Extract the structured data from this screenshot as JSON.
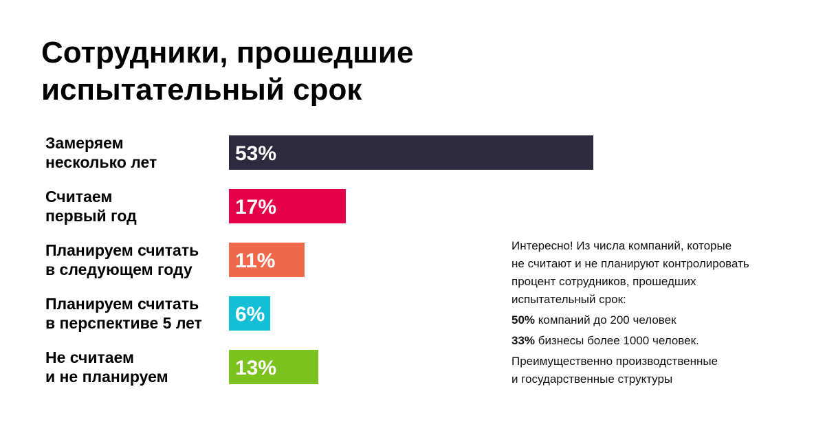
{
  "title": {
    "line1": "Сотрудники, прошедшие",
    "line2": "испытательный срок"
  },
  "chart_data": {
    "type": "bar",
    "orientation": "horizontal",
    "title": "Сотрудники, прошедшие испытательный срок",
    "categories": [
      [
        "Замеряем",
        "несколько лет"
      ],
      [
        "Считаем",
        "первый год"
      ],
      [
        "Планируем считать",
        "в следующем году"
      ],
      [
        "Планируем считать",
        "в перспективе 5 лет"
      ],
      [
        "Не считаем",
        "и не планируем"
      ]
    ],
    "values": [
      53,
      17,
      11,
      6,
      13
    ],
    "value_labels": [
      "53%",
      "17%",
      "11%",
      "6%",
      "13%"
    ],
    "colors": [
      "#2d2a40",
      "#e5004a",
      "#f0684a",
      "#13bfd6",
      "#7cc21d"
    ],
    "unit": "%",
    "xlim": [
      0,
      100
    ],
    "grid": false,
    "legend": "none"
  },
  "note": {
    "intro": [
      "Интересно! Из числа компаний, которые",
      "не считают и не планируют контролировать",
      "процент сотрудников, прошедших",
      "испытательный срок:"
    ],
    "fact1_value": "50%",
    "fact1_text": " компаний до 200 человек",
    "fact2_value": "33%",
    "fact2_text": " бизнесы более 1000 человек.",
    "outro": [
      "Преимущественно производственные",
      "и государственные структуры"
    ]
  }
}
